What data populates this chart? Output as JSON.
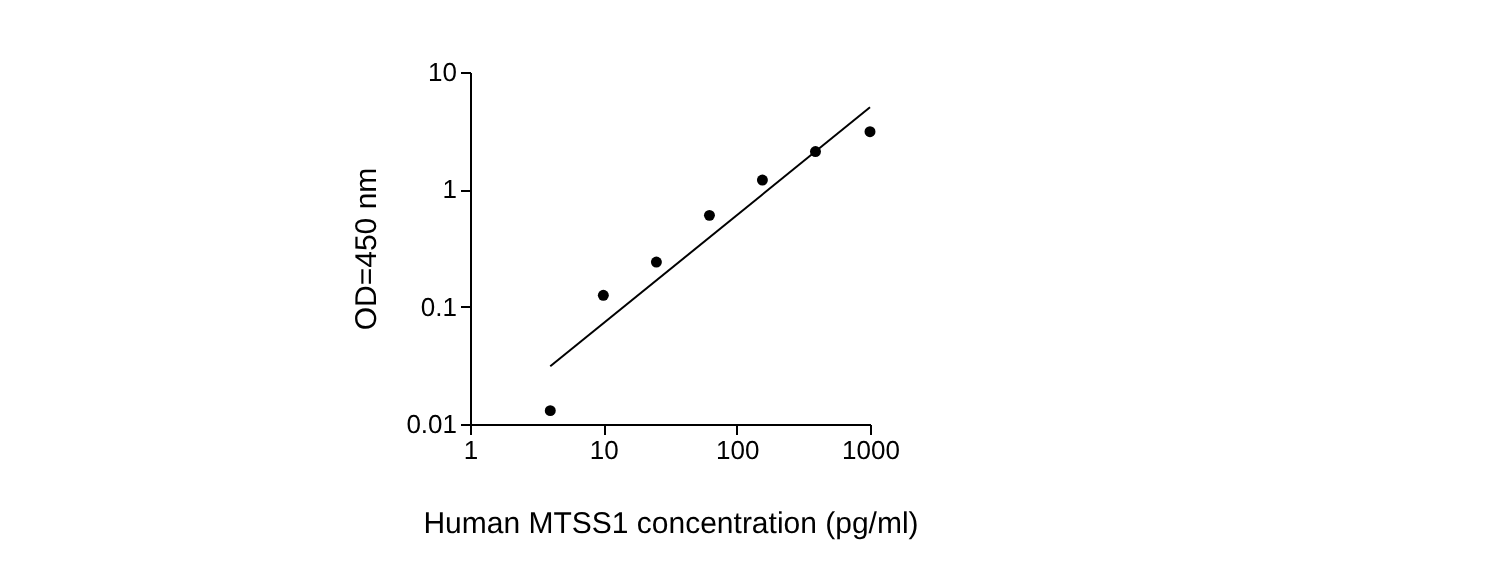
{
  "chart_data": {
    "type": "scatter",
    "xlabel": "Human MTSS1 concentration (pg/ml)",
    "ylabel": "OD=450 nm",
    "log": "xy",
    "xlim": [
      1,
      1000
    ],
    "ylim": [
      0.01,
      10
    ],
    "xticks": [
      1,
      10,
      100,
      1000
    ],
    "yticks": [
      0.01,
      0.1,
      1,
      10
    ],
    "grid": false,
    "marker": "circle",
    "series": [
      {
        "color": "#000000",
        "x": [
          4,
          10,
          25,
          62.5,
          156,
          390,
          1000
        ],
        "values": [
          0.013,
          0.125,
          0.24,
          0.6,
          1.2,
          2.1,
          3.1
        ]
      },
      {
        "type": "line",
        "color": "#000000",
        "x": [
          4,
          1000
        ],
        "values": [
          0.031,
          5
        ],
        "marker": "none",
        "line_style": "solid"
      }
    ]
  }
}
